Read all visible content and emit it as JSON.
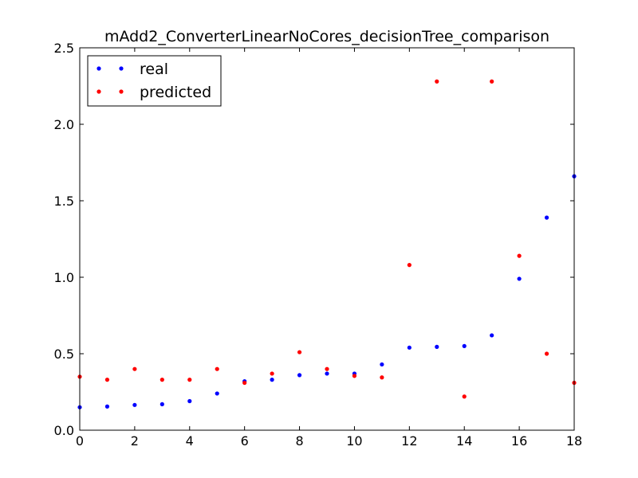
{
  "chart_data": {
    "type": "scatter",
    "title": "mAdd2_ConverterLinearNoCores_decisionTree_comparison",
    "xlabel": "",
    "ylabel": "",
    "xlim": [
      0,
      18
    ],
    "ylim": [
      0,
      2.5
    ],
    "xticks": [
      "0",
      "2",
      "4",
      "6",
      "8",
      "10",
      "12",
      "14",
      "16",
      "18"
    ],
    "yticks": [
      "0.0",
      "0.5",
      "1.0",
      "1.5",
      "2.0",
      "2.5"
    ],
    "grid": false,
    "legend_position": "top-left",
    "x": [
      0,
      1,
      2,
      3,
      4,
      5,
      6,
      7,
      8,
      9,
      10,
      11,
      12,
      13,
      14,
      15,
      16,
      17,
      18
    ],
    "series": [
      {
        "name": "real",
        "color": "#0000ff",
        "values": [
          0.15,
          0.155,
          0.165,
          0.17,
          0.19,
          0.24,
          0.32,
          0.33,
          0.36,
          0.37,
          0.37,
          0.43,
          0.54,
          0.545,
          0.55,
          0.62,
          0.99,
          1.39,
          1.66
        ]
      },
      {
        "name": "predicted",
        "color": "#ff0000",
        "values": [
          0.35,
          0.33,
          0.4,
          0.33,
          0.33,
          0.4,
          0.31,
          0.37,
          0.51,
          0.4,
          0.355,
          0.345,
          1.08,
          2.28,
          0.22,
          2.28,
          1.14,
          0.5,
          0.31
        ]
      }
    ]
  }
}
